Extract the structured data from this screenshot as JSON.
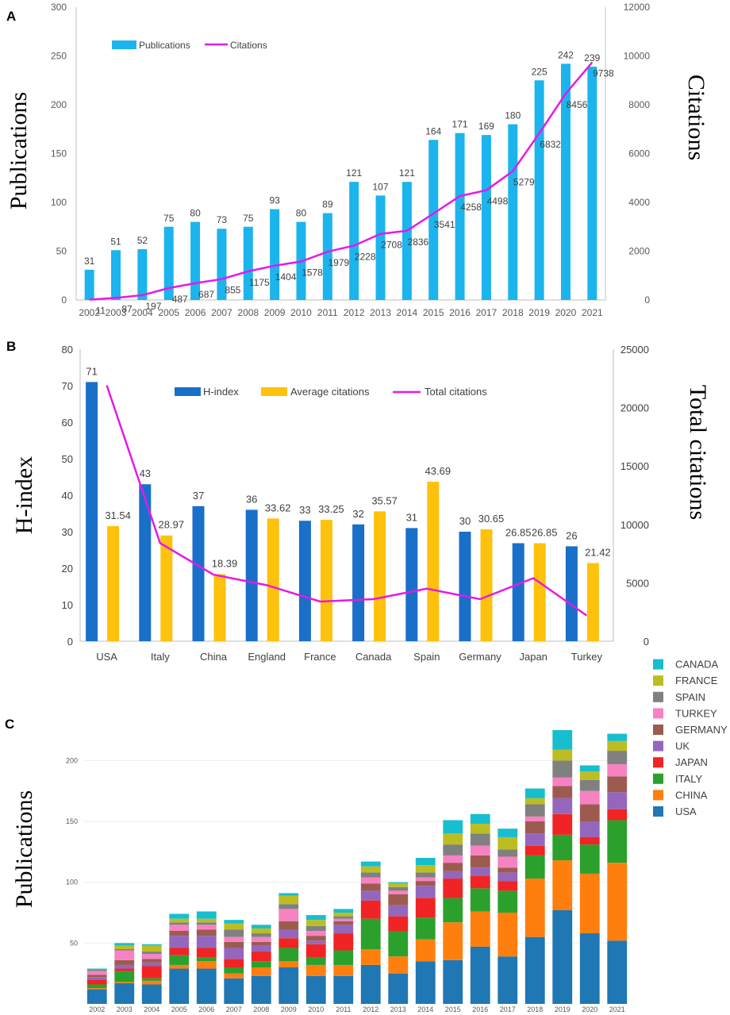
{
  "chart_data": [
    {
      "panel": "A",
      "type": "bar",
      "ylabel": "Publications",
      "y2label": "Citations",
      "ylim": [
        0,
        300
      ],
      "y2lim": [
        0,
        12000
      ],
      "yticks": [
        "0",
        "50",
        "100",
        "150",
        "200",
        "250",
        "300"
      ],
      "y2ticks": [
        "0",
        "2000",
        "4000",
        "6000",
        "8000",
        "10000",
        "12000"
      ],
      "categories": [
        "2002",
        "2003",
        "2004",
        "2005",
        "2006",
        "2007",
        "2008",
        "2009",
        "2010",
        "2011",
        "2012",
        "2013",
        "2014",
        "2015",
        "2016",
        "2017",
        "2018",
        "2019",
        "2020",
        "2021"
      ],
      "series": [
        {
          "name": "Publications",
          "kind": "bar",
          "color": "#1CB4EC",
          "values": [
            31,
            51,
            52,
            75,
            80,
            73,
            75,
            93,
            80,
            89,
            121,
            107,
            121,
            164,
            171,
            169,
            180,
            225,
            242,
            239
          ],
          "labels": [
            "31",
            "51",
            "52",
            "75",
            "80",
            "73",
            "75",
            "93",
            "80",
            "89",
            "121",
            "107",
            "121",
            "164",
            "171",
            "169",
            "180",
            "225",
            "242",
            "239"
          ]
        },
        {
          "name": "Citations",
          "kind": "line",
          "axis": "right",
          "color": "#E619E6",
          "values": [
            11,
            87,
            197,
            487,
            687,
            855,
            1175,
            1404,
            1578,
            1979,
            2228,
            2708,
            2836,
            3541,
            4258,
            4498,
            5279,
            6832,
            8456,
            9738
          ],
          "labels": [
            "11",
            "87",
            "197",
            "487",
            "687",
            "855",
            "1175",
            "1404",
            "1578",
            "1979",
            "2228",
            "2708",
            "2836",
            "3541",
            "4258",
            "4498",
            "5279",
            "6832",
            "8456",
            "9738"
          ]
        }
      ],
      "legend": "top-left"
    },
    {
      "panel": "B",
      "type": "bar",
      "ylabel": "H-index",
      "y2label": "Total citations",
      "ylim": [
        0,
        80
      ],
      "y2lim": [
        0,
        25000
      ],
      "yticks": [
        "0",
        "10",
        "20",
        "30",
        "40",
        "50",
        "60",
        "70",
        "80"
      ],
      "y2ticks": [
        "0",
        "5000",
        "10000",
        "15000",
        "20000",
        "25000"
      ],
      "categories": [
        "USA",
        "Italy",
        "China",
        "England",
        "France",
        "Canada",
        "Spain",
        "Germany",
        "Japan",
        "Turkey"
      ],
      "series": [
        {
          "name": "H-index",
          "kind": "bar",
          "color": "#1A6FC9",
          "values": [
            71,
            43,
            37,
            36,
            33,
            32,
            31,
            30,
            26.85,
            26
          ],
          "labels": [
            "71",
            "43",
            "37",
            "36",
            "33",
            "32",
            "31",
            "30",
            "26.85",
            "26"
          ]
        },
        {
          "name": "Average citations",
          "kind": "bar",
          "color": "#FEC20C",
          "values": [
            31.54,
            28.97,
            18.39,
            33.62,
            33.25,
            35.57,
            43.69,
            30.65,
            26.85,
            21.42
          ],
          "labels": [
            "31.54",
            "28.97",
            "18.39",
            "33.62",
            "33.25",
            "35.57",
            "43.69",
            "30.65",
            "26.85",
            "21.42"
          ]
        },
        {
          "name": "Total citations",
          "kind": "line",
          "axis": "right",
          "color": "#E619E6",
          "values": [
            21900,
            8400,
            5700,
            4800,
            3400,
            3600,
            4500,
            3600,
            5400,
            2200
          ]
        }
      ],
      "legend": "top"
    },
    {
      "panel": "C",
      "type": "bar",
      "stacked": true,
      "ylabel": "Publications",
      "ylim": [
        0,
        225
      ],
      "yticks": [
        "50",
        "100",
        "150",
        "200"
      ],
      "categories": [
        "2002",
        "2003",
        "2004",
        "2005",
        "2006",
        "2007",
        "2008",
        "2009",
        "2010",
        "2011",
        "2012",
        "2013",
        "2014",
        "2015",
        "2016",
        "2017",
        "2018",
        "2019",
        "2020",
        "2021"
      ],
      "series": [
        {
          "name": "USA",
          "color": "#1F77B4",
          "values": [
            12,
            17,
            16,
            29,
            29,
            21,
            23,
            30,
            23,
            23,
            32,
            25,
            35,
            36,
            47,
            39,
            55,
            77,
            58,
            52
          ]
        },
        {
          "name": "CHINA",
          "color": "#FF7F0E",
          "values": [
            1,
            1,
            3,
            3,
            6,
            4,
            7,
            5,
            9,
            9,
            13,
            14,
            18,
            31,
            29,
            36,
            48,
            41,
            49,
            64
          ]
        },
        {
          "name": "ITALY",
          "color": "#2CA02C",
          "values": [
            3,
            9,
            2,
            8,
            3,
            5,
            5,
            11,
            6,
            12,
            25,
            21,
            18,
            20,
            19,
            18,
            19,
            21,
            24,
            35
          ]
        },
        {
          "name": "JAPAN",
          "color": "#F02424",
          "values": [
            4,
            2,
            10,
            6,
            8,
            7,
            8,
            8,
            11,
            14,
            15,
            12,
            16,
            16,
            10,
            8,
            8,
            17,
            6,
            9
          ]
        },
        {
          "name": "UK",
          "color": "#9467BD",
          "values": [
            2,
            3,
            3,
            10,
            10,
            9,
            5,
            7,
            3,
            7,
            8,
            9,
            10,
            6,
            7,
            7,
            10,
            13,
            13,
            14
          ]
        },
        {
          "name": "GERMANY",
          "color": "#9D5B50",
          "values": [
            2,
            4,
            3,
            4,
            5,
            5,
            3,
            7,
            4,
            3,
            6,
            9,
            4,
            7,
            10,
            4,
            10,
            10,
            14,
            13
          ]
        },
        {
          "name": "TURKEY",
          "color": "#F782C2",
          "values": [
            3,
            8,
            4,
            5,
            4,
            4,
            4,
            10,
            4,
            2,
            5,
            3,
            3,
            6,
            8,
            9,
            4,
            7,
            11,
            10
          ]
        },
        {
          "name": "SPAIN",
          "color": "#808080",
          "values": [
            1,
            1,
            2,
            2,
            2,
            6,
            3,
            4,
            4,
            2,
            4,
            3,
            4,
            9,
            10,
            6,
            10,
            14,
            9,
            11
          ]
        },
        {
          "name": "FRANCE",
          "color": "#BCBD22",
          "values": [
            0,
            3,
            5,
            3,
            3,
            5,
            4,
            7,
            5,
            3,
            5,
            3,
            6,
            9,
            8,
            10,
            5,
            9,
            7,
            8
          ]
        },
        {
          "name": "CANADA",
          "color": "#17BECF",
          "values": [
            1,
            2,
            1,
            4,
            6,
            3,
            3,
            2,
            4,
            3,
            4,
            1,
            6,
            11,
            8,
            7,
            8,
            16,
            5,
            6
          ]
        }
      ],
      "legend": "top-right"
    }
  ]
}
